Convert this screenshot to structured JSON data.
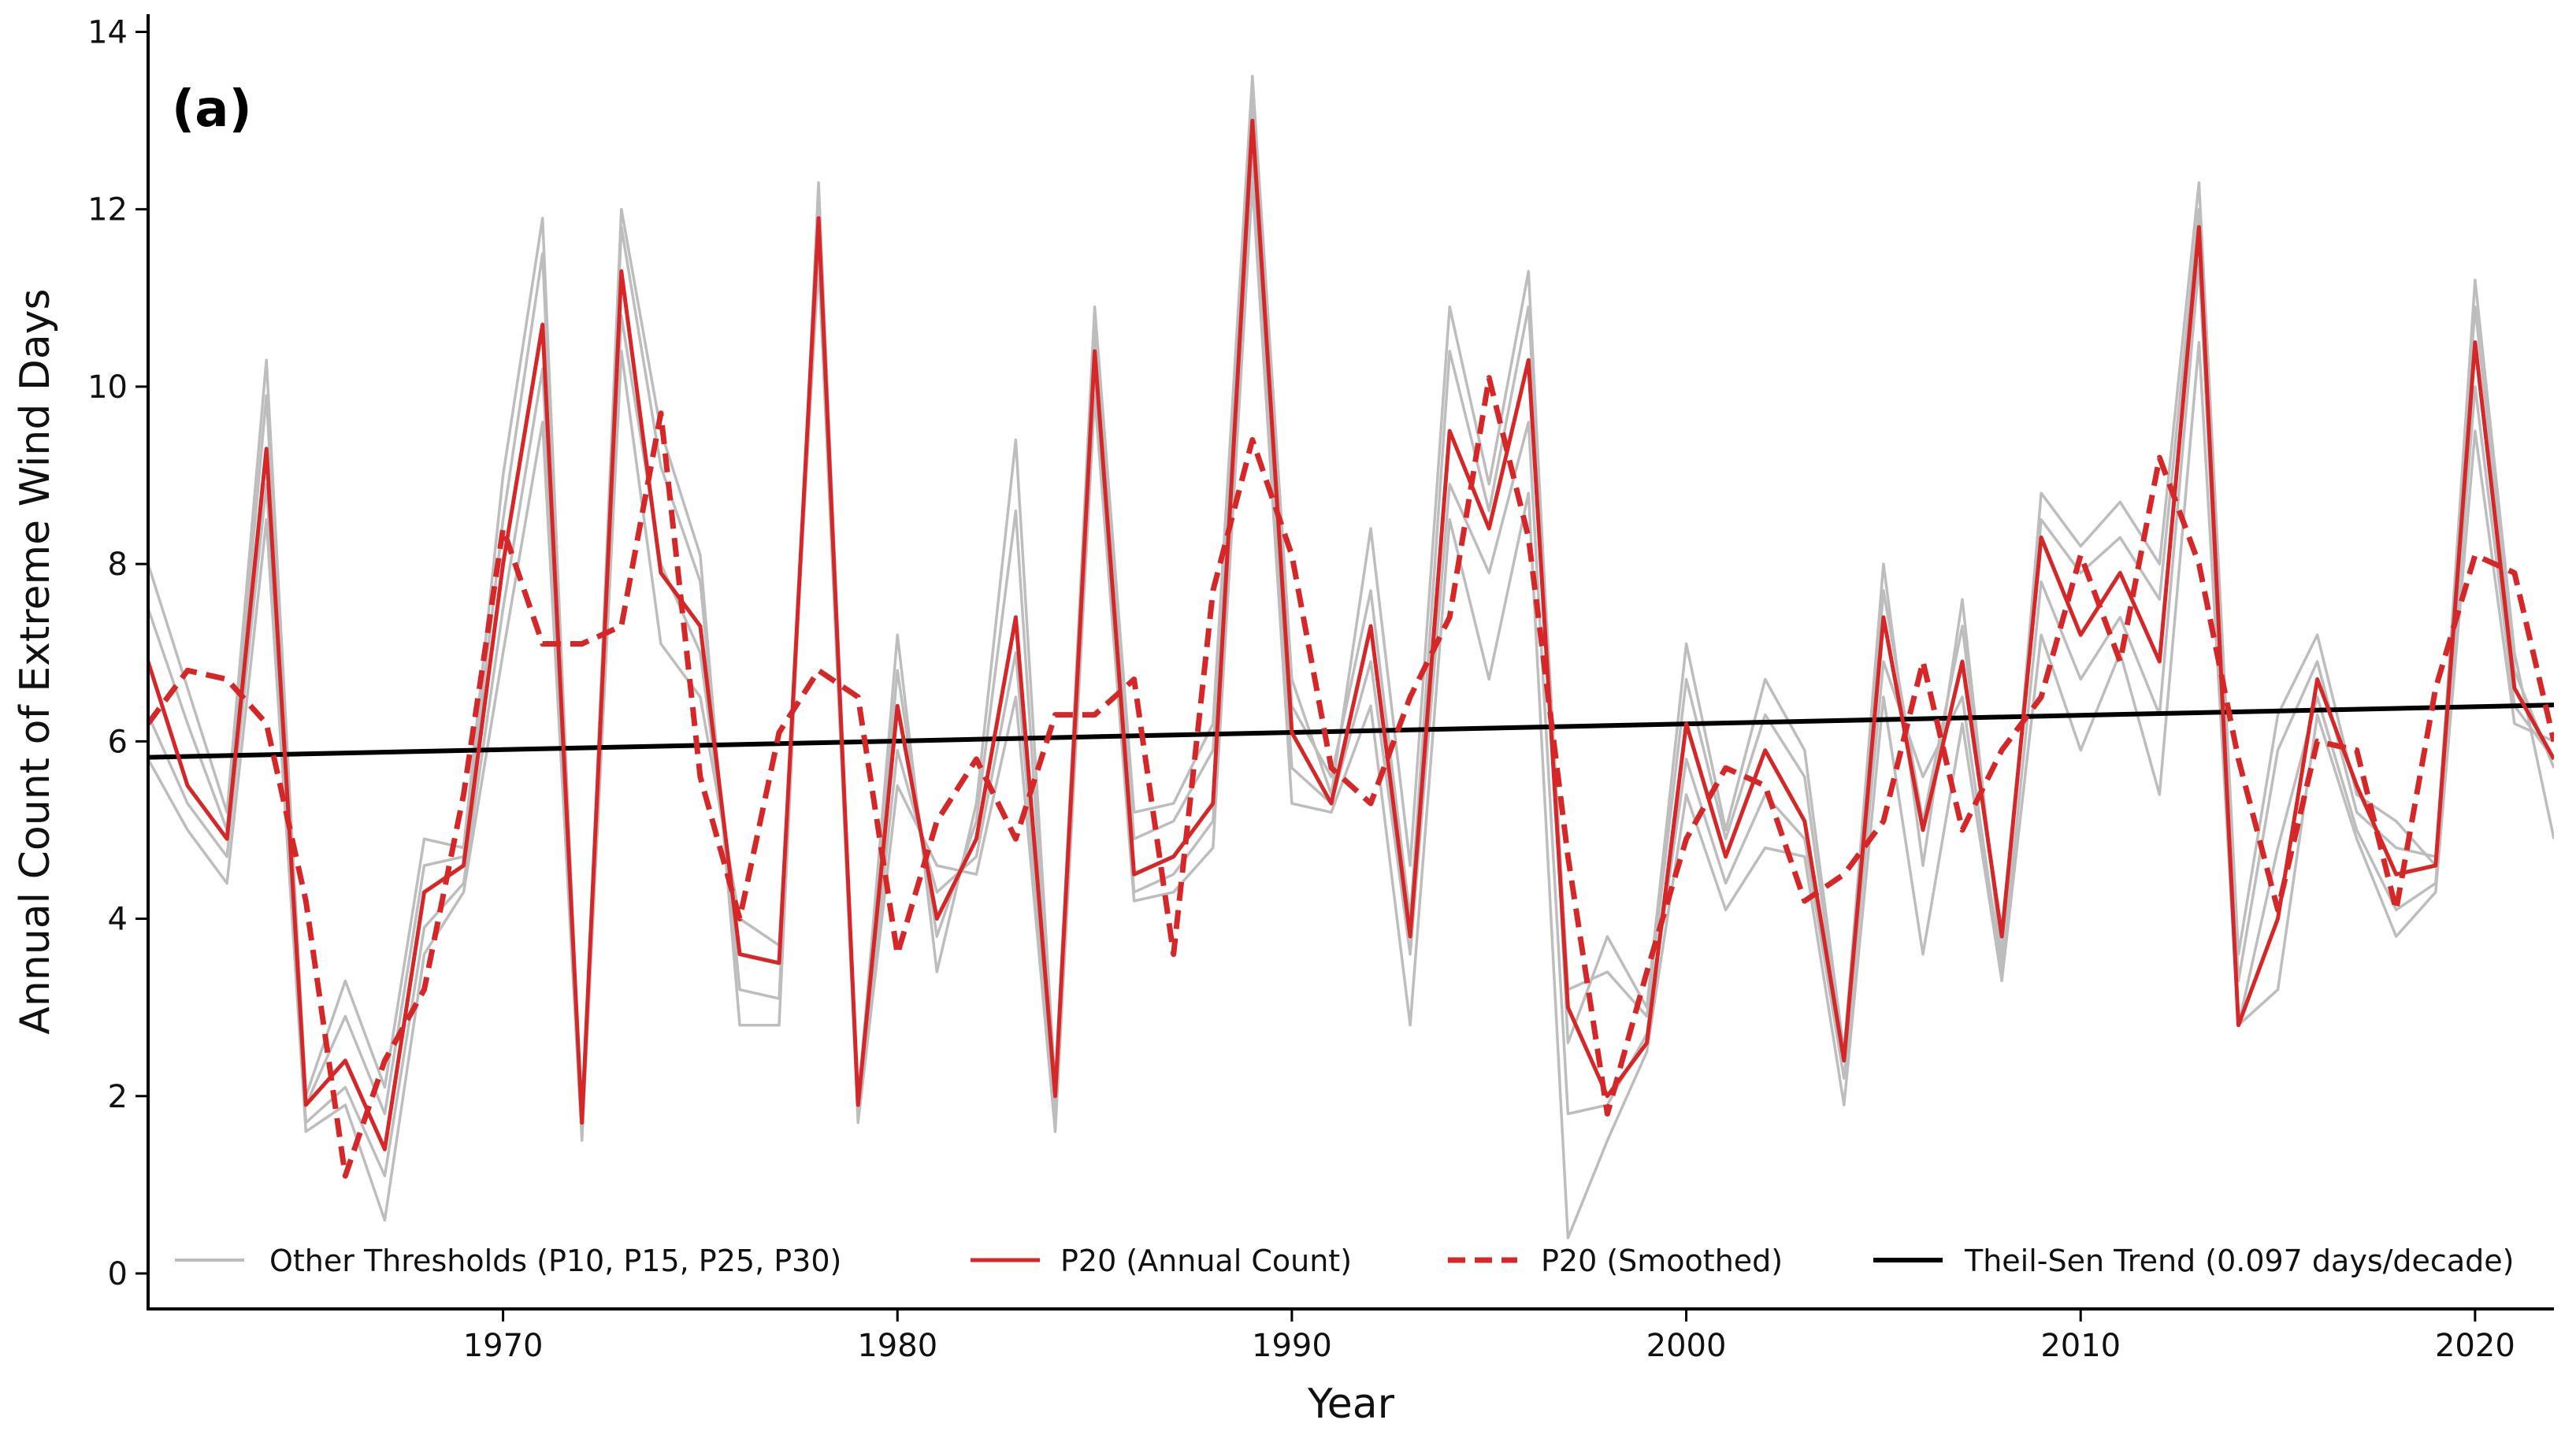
{
  "chart_data": {
    "type": "line",
    "panel_label": "(a)",
    "title": "",
    "xlabel": "Year",
    "ylabel": "Annual Count of Extreme Wind Days",
    "xlim": [
      1961,
      2022
    ],
    "ylim": [
      -0.4,
      14.2
    ],
    "xticks": [
      1970,
      1980,
      1990,
      2000,
      2010,
      2020
    ],
    "yticks": [
      0,
      2,
      4,
      6,
      8,
      10,
      12,
      14
    ],
    "grid": false,
    "legend_position": "bottom",
    "x": [
      1961,
      1962,
      1963,
      1964,
      1965,
      1966,
      1967,
      1968,
      1969,
      1970,
      1971,
      1972,
      1973,
      1974,
      1975,
      1976,
      1977,
      1978,
      1979,
      1980,
      1981,
      1982,
      1983,
      1984,
      1985,
      1986,
      1987,
      1988,
      1989,
      1990,
      1991,
      1992,
      1993,
      1994,
      1995,
      1996,
      1997,
      1998,
      1999,
      2000,
      2001,
      2002,
      2003,
      2004,
      2005,
      2006,
      2007,
      2008,
      2009,
      2010,
      2011,
      2012,
      2013,
      2014,
      2015,
      2016,
      2017,
      2018,
      2019,
      2020,
      2021,
      2022
    ],
    "series": [
      {
        "name": "P10",
        "group": "other",
        "values": [
          8.0,
          6.6,
          5.2,
          10.3,
          2.0,
          3.3,
          2.1,
          4.9,
          4.8,
          9.0,
          11.9,
          1.6,
          12.0,
          9.5,
          8.1,
          2.8,
          2.8,
          12.3,
          1.9,
          7.2,
          3.4,
          5.3,
          9.4,
          2.1,
          10.9,
          5.2,
          5.3,
          6.2,
          13.5,
          6.7,
          5.4,
          8.4,
          4.6,
          10.9,
          8.9,
          11.3,
          2.6,
          3.8,
          3.0,
          7.1,
          5.0,
          6.7,
          5.9,
          2.5,
          8.0,
          4.6,
          7.6,
          3.5,
          8.8,
          8.2,
          8.7,
          8.0,
          12.3,
          3.6,
          6.3,
          7.2,
          5.4,
          5.1,
          4.6,
          11.2,
          7.0,
          4.9
        ]
      },
      {
        "name": "P15",
        "group": "other",
        "values": [
          7.5,
          6.2,
          5.0,
          9.9,
          1.9,
          2.9,
          1.8,
          4.6,
          4.7,
          8.5,
          11.5,
          1.7,
          11.8,
          9.1,
          7.8,
          3.2,
          3.1,
          12.1,
          1.8,
          6.8,
          3.8,
          5.1,
          8.6,
          1.9,
          10.7,
          4.9,
          5.1,
          5.9,
          13.3,
          6.4,
          5.6,
          7.7,
          4.0,
          10.4,
          8.6,
          10.9,
          3.2,
          3.4,
          2.9,
          6.7,
          4.9,
          6.3,
          5.6,
          2.4,
          7.7,
          5.1,
          7.3,
          3.6,
          8.5,
          7.9,
          8.3,
          7.6,
          12.0,
          3.3,
          5.9,
          6.9,
          5.2,
          4.8,
          4.7,
          10.9,
          6.8,
          5.7
        ]
      },
      {
        "name": "P25",
        "group": "other",
        "values": [
          6.3,
          5.3,
          4.7,
          8.9,
          1.7,
          2.1,
          1.1,
          3.9,
          4.4,
          7.5,
          10.2,
          1.6,
          10.8,
          8.0,
          7.0,
          3.6,
          3.5,
          11.6,
          1.8,
          5.9,
          4.3,
          4.7,
          7.0,
          1.7,
          10.2,
          4.3,
          4.5,
          5.1,
          12.6,
          5.7,
          5.3,
          6.9,
          3.6,
          8.9,
          7.9,
          9.6,
          1.8,
          1.9,
          2.7,
          5.8,
          4.4,
          5.4,
          4.9,
          2.2,
          6.9,
          5.6,
          6.5,
          3.4,
          7.8,
          6.7,
          7.4,
          6.3,
          11.4,
          2.8,
          4.8,
          6.5,
          5.0,
          4.1,
          4.4,
          10.0,
          6.4,
          5.8
        ]
      },
      {
        "name": "P30",
        "group": "other",
        "values": [
          5.8,
          5.0,
          4.4,
          8.5,
          1.6,
          1.9,
          0.6,
          3.6,
          4.3,
          7.0,
          9.6,
          1.5,
          10.4,
          7.1,
          6.5,
          4.0,
          3.7,
          11.4,
          1.7,
          5.5,
          4.6,
          4.5,
          6.5,
          1.6,
          9.9,
          4.2,
          4.3,
          4.8,
          12.3,
          5.3,
          5.2,
          6.4,
          2.8,
          8.5,
          6.7,
          8.8,
          0.4,
          1.5,
          2.5,
          5.4,
          4.1,
          4.8,
          4.7,
          1.9,
          6.5,
          3.6,
          6.2,
          3.3,
          7.2,
          5.9,
          7.0,
          5.4,
          10.5,
          2.8,
          3.2,
          6.3,
          4.9,
          3.8,
          4.3,
          9.5,
          6.2,
          6.0
        ]
      },
      {
        "name": "P20 (Annual Count)",
        "group": "p20",
        "color": "#d62728",
        "values": [
          6.9,
          5.5,
          4.9,
          9.3,
          1.9,
          2.4,
          1.4,
          4.3,
          4.6,
          8.0,
          10.7,
          1.7,
          11.3,
          7.9,
          7.3,
          3.6,
          3.5,
          11.9,
          1.9,
          6.4,
          4.0,
          4.9,
          7.4,
          2.0,
          10.4,
          4.5,
          4.7,
          5.3,
          13.0,
          6.1,
          5.3,
          7.3,
          3.8,
          9.5,
          8.4,
          10.3,
          3.0,
          2.0,
          2.6,
          6.2,
          4.7,
          5.9,
          5.1,
          2.4,
          7.4,
          5.0,
          6.9,
          3.8,
          8.3,
          7.2,
          7.9,
          6.9,
          11.8,
          2.8,
          4.0,
          6.7,
          5.5,
          4.5,
          4.6,
          10.5,
          6.6,
          5.8
        ]
      },
      {
        "name": "P20 (Smoothed)",
        "group": "p20s",
        "color": "#d62728",
        "values": [
          6.2,
          6.8,
          6.7,
          6.2,
          4.2,
          1.1,
          2.4,
          3.2,
          5.4,
          8.4,
          7.1,
          7.1,
          7.3,
          9.7,
          5.6,
          4.0,
          6.1,
          6.8,
          6.5,
          3.6,
          5.1,
          5.8,
          4.9,
          6.3,
          6.3,
          6.7,
          3.6,
          7.7,
          9.4,
          8.1,
          5.7,
          5.3,
          6.5,
          7.4,
          10.1,
          8.3,
          4.7,
          1.8,
          3.4,
          4.9,
          5.7,
          5.5,
          4.2,
          4.5,
          5.1,
          6.9,
          5.0,
          5.9,
          6.5,
          8.1,
          6.9,
          9.2,
          8.0,
          5.8,
          4.1,
          6.0,
          5.9,
          4.1,
          6.6,
          8.1,
          7.9,
          6.0
        ]
      }
    ],
    "trend": {
      "name": "Theil-Sen Trend",
      "rate": 0.097,
      "unit": "days/decade",
      "start": [
        1961,
        5.82
      ],
      "end": [
        2022,
        6.41
      ],
      "color": "#000000"
    },
    "legend": [
      {
        "label": "Other Thresholds (P10, P15, P25, P30)",
        "style": "gray"
      },
      {
        "label": "P20 (Annual Count)",
        "style": "red-solid"
      },
      {
        "label": "P20 (Smoothed)",
        "style": "red-dashed"
      },
      {
        "label": "Theil-Sen Trend (0.097 days/decade)",
        "style": "black"
      }
    ],
    "colors": {
      "other": "#bdbdbd",
      "p20": "#d62728",
      "trend": "#000000"
    }
  }
}
